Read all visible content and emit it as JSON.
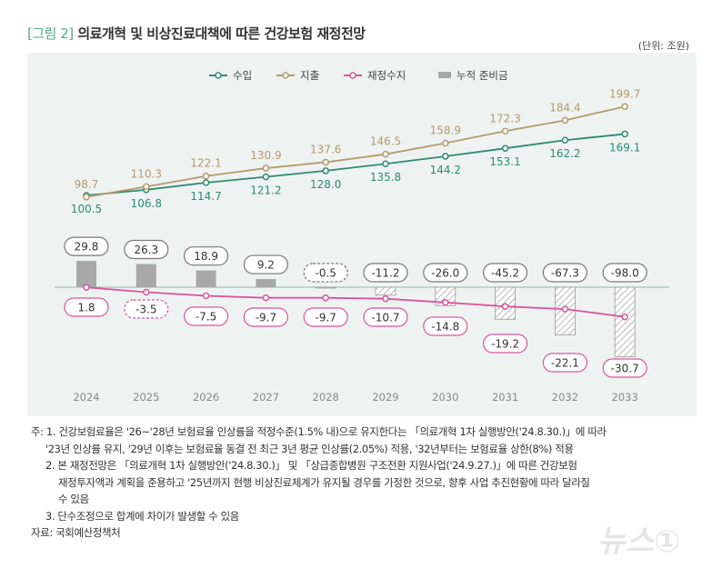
{
  "title": {
    "tag": "[그림 2]",
    "text": "의료개혁 및 비상진료대책에 따른 건강보험 재정전망"
  },
  "unit": "(단위: 조원)",
  "chart_data": {
    "type": "line",
    "categories": [
      "2024",
      "2025",
      "2026",
      "2027",
      "2028",
      "2029",
      "2030",
      "2031",
      "2032",
      "2033"
    ],
    "series": [
      {
        "name": "수입",
        "type": "line",
        "color": "#2e8a72",
        "values": [
          100.5,
          106.8,
          114.7,
          121.2,
          128.0,
          135.8,
          144.2,
          153.1,
          162.2,
          169.1
        ]
      },
      {
        "name": "지출",
        "type": "line",
        "color": "#b39a6a",
        "values": [
          98.7,
          110.3,
          122.1,
          130.9,
          137.6,
          146.5,
          158.9,
          172.3,
          184.4,
          199.7
        ]
      },
      {
        "name": "재정수지",
        "type": "line",
        "color": "#d9559a",
        "values": [
          1.8,
          -3.5,
          -7.5,
          -9.7,
          -9.7,
          -10.7,
          -14.8,
          -19.2,
          -22.1,
          -30.7
        ]
      },
      {
        "name": "누적 준비금",
        "type": "bar",
        "color": "#a8a8a8",
        "values": [
          29.8,
          26.3,
          18.9,
          9.2,
          -0.5,
          -11.2,
          -26.0,
          -45.2,
          -67.3,
          -98.0
        ]
      }
    ],
    "legend": "top-center",
    "grid": false
  },
  "notes": [
    "주: 1. 건강보험료율은 '26~'28년 보험료율 인상률을 적정수준(1.5% 내)으로 유지한다는 「의료개혁 1차 실행방안('24.8.30.)」에 따라",
    "'23년 인상률 유지, '29년 이후는 보험료율 동결 전 최근 3년 평균 인상률(2.05%) 적용, '32년부터는 보험료율 상한(8%) 적용",
    "2. 본 재정전망은 「의료개혁 1차 실행방안('24.8.30.)」 및 「상급종합병원 구조전환 지원사업('24.9.27.)」에 따른 건강보험",
    "재정투자액과 계획을 준용하고 '25년까지 현행 비상진료체계가 유지될 경우를 가정한 것으로, 향후 사업 추진현황에 따라 달라질",
    "수 있음",
    "3. 단수조정으로 합계에 차이가 발생할 수 있음"
  ],
  "source": "자료: 국회예산정책처",
  "watermark": "뉴스1"
}
